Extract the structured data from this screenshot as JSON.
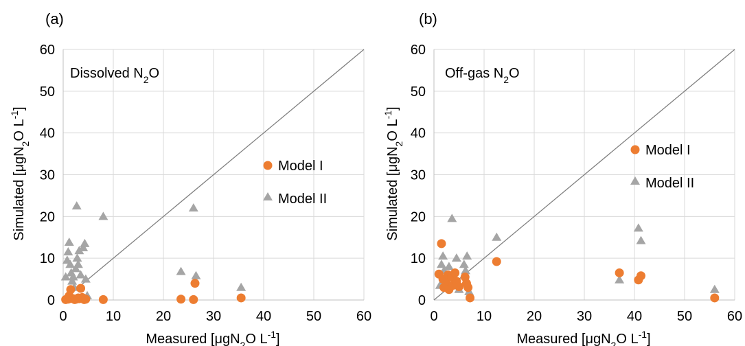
{
  "chart_data": [
    {
      "type": "scatter",
      "panel_label": "(a)",
      "annotation": {
        "main": "Dissolved N",
        "sub": "2",
        "tail": "O"
      },
      "xlabel": {
        "pre": "Measured [μgN",
        "sub": "2",
        "post": "O L",
        "sup": "-1",
        "end": "]"
      },
      "ylabel": {
        "pre": "Simulated  [μgN",
        "sub": "2",
        "post": "O L",
        "sup": "-1",
        "end": "]"
      },
      "xlim": [
        0,
        60
      ],
      "ylim": [
        0,
        60
      ],
      "xticks": [
        "0",
        "10",
        "20",
        "30",
        "40",
        "50",
        "60"
      ],
      "yticks": [
        "0",
        "10",
        "20",
        "30",
        "40",
        "50",
        "60"
      ],
      "grid": true,
      "identity_line": true,
      "legend_position": "right",
      "series": [
        {
          "name": "Model I",
          "marker": "circle",
          "color": "#ED7D31",
          "points": [
            [
              0.5,
              0.1
            ],
            [
              0.8,
              0.3
            ],
            [
              1.0,
              0.2
            ],
            [
              1.2,
              1.0
            ],
            [
              1.5,
              2.5
            ],
            [
              1.5,
              0.4
            ],
            [
              2.0,
              0.3
            ],
            [
              2.3,
              0.1
            ],
            [
              2.6,
              0.2
            ],
            [
              3.0,
              0.5
            ],
            [
              3.2,
              0.3
            ],
            [
              3.5,
              2.8
            ],
            [
              3.8,
              0.6
            ],
            [
              4.2,
              0.1
            ],
            [
              4.5,
              0.2
            ],
            [
              8.0,
              0.1
            ],
            [
              23.5,
              0.2
            ],
            [
              26.0,
              0.1
            ],
            [
              26.3,
              4.0
            ],
            [
              35.5,
              0.5
            ]
          ]
        },
        {
          "name": "Model II",
          "marker": "triangle",
          "color": "#A5A5A5",
          "points": [
            [
              0.5,
              5.5
            ],
            [
              0.8,
              9.5
            ],
            [
              1.0,
              11.5
            ],
            [
              1.2,
              13.8
            ],
            [
              1.4,
              8.5
            ],
            [
              1.6,
              6.5
            ],
            [
              1.8,
              4.5
            ],
            [
              2.0,
              5.5
            ],
            [
              2.2,
              3.0
            ],
            [
              2.5,
              7.5
            ],
            [
              2.7,
              22.5
            ],
            [
              2.8,
              10.0
            ],
            [
              3.0,
              8.5
            ],
            [
              3.2,
              11.8
            ],
            [
              3.5,
              6.0
            ],
            [
              4.0,
              12.5
            ],
            [
              4.3,
              13.5
            ],
            [
              4.5,
              5.0
            ],
            [
              4.8,
              1.0
            ],
            [
              8.0,
              20.0
            ],
            [
              23.5,
              6.8
            ],
            [
              26.0,
              22.0
            ],
            [
              26.5,
              5.8
            ],
            [
              35.5,
              3.0
            ]
          ]
        }
      ]
    },
    {
      "type": "scatter",
      "panel_label": "(b)",
      "annotation": {
        "main": "Off-gas N",
        "sub": "2",
        "tail": "O"
      },
      "xlabel": {
        "pre": "Measured [μgN",
        "sub": "2",
        "post": "O L",
        "sup": "-1",
        "end": "]"
      },
      "ylabel": {
        "pre": "Simulated  [μgN",
        "sub": "2",
        "post": "O L",
        "sup": "-1",
        "end": "]"
      },
      "xlim": [
        0,
        60
      ],
      "ylim": [
        0,
        60
      ],
      "xticks": [
        "0",
        "10",
        "20",
        "30",
        "40",
        "50",
        "60"
      ],
      "yticks": [
        "0",
        "10",
        "20",
        "30",
        "40",
        "50",
        "60"
      ],
      "grid": true,
      "identity_line": true,
      "legend_position": "right",
      "series": [
        {
          "name": "Model I",
          "marker": "circle",
          "color": "#ED7D31",
          "points": [
            [
              1.0,
              6.2
            ],
            [
              1.5,
              13.5
            ],
            [
              1.8,
              5.0
            ],
            [
              2.0,
              3.0
            ],
            [
              2.5,
              4.0
            ],
            [
              2.8,
              6.0
            ],
            [
              3.0,
              2.5
            ],
            [
              3.5,
              5.5
            ],
            [
              3.8,
              3.5
            ],
            [
              4.2,
              6.5
            ],
            [
              4.5,
              4.5
            ],
            [
              5.0,
              3.2
            ],
            [
              6.2,
              5.5
            ],
            [
              6.5,
              4.0
            ],
            [
              6.8,
              3.0
            ],
            [
              7.2,
              0.5
            ],
            [
              12.5,
              9.2
            ],
            [
              37.0,
              6.5
            ],
            [
              40.8,
              4.8
            ],
            [
              41.3,
              5.8
            ],
            [
              56.0,
              0.5
            ]
          ]
        },
        {
          "name": "Model II",
          "marker": "triangle",
          "color": "#A5A5A5",
          "points": [
            [
              1.2,
              3.5
            ],
            [
              1.5,
              8.5
            ],
            [
              1.8,
              10.5
            ],
            [
              2.0,
              7.0
            ],
            [
              2.3,
              4.5
            ],
            [
              2.6,
              6.0
            ],
            [
              3.0,
              8.0
            ],
            [
              3.3,
              5.5
            ],
            [
              3.6,
              19.5
            ],
            [
              4.0,
              4.0
            ],
            [
              4.5,
              10.0
            ],
            [
              5.0,
              2.5
            ],
            [
              6.0,
              8.5
            ],
            [
              6.3,
              7.0
            ],
            [
              6.6,
              10.5
            ],
            [
              7.0,
              2.0
            ],
            [
              12.5,
              15.0
            ],
            [
              37.0,
              4.8
            ],
            [
              40.8,
              17.2
            ],
            [
              41.3,
              14.2
            ],
            [
              56.0,
              2.5
            ]
          ]
        }
      ]
    }
  ]
}
